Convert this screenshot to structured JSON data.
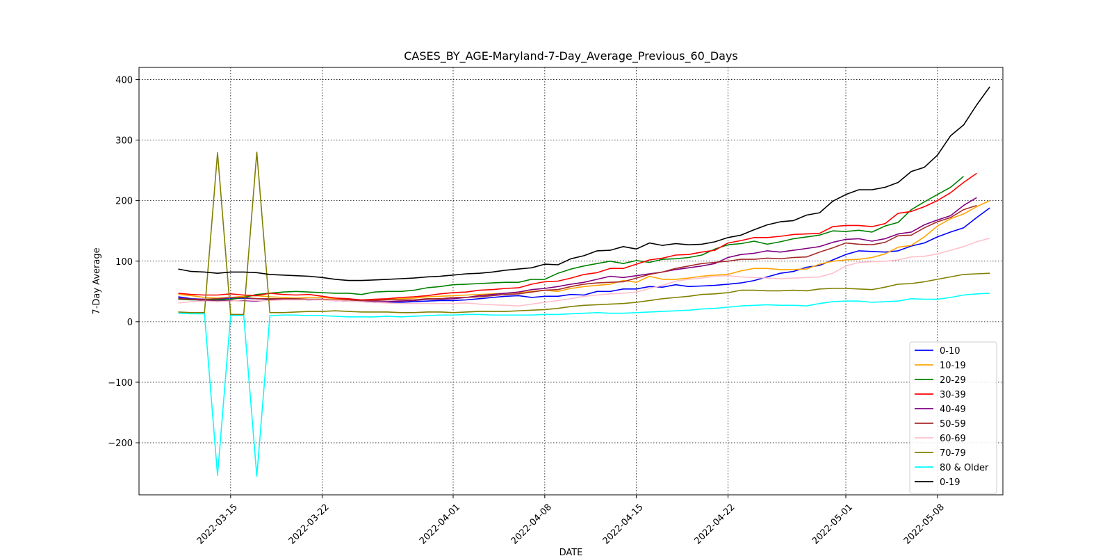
{
  "chart_data": {
    "type": "line",
    "title": "CASES_BY_AGE-Maryland-7-Day_Average_Previous_60_Days",
    "xlabel": "DATE",
    "ylabel": "7-Day Average",
    "x_start": "2022-03-11",
    "x_tick_labels": [
      "2022-03-15",
      "2022-03-22",
      "2022-04-01",
      "2022-04-08",
      "2022-04-15",
      "2022-04-22",
      "2022-05-01",
      "2022-05-08"
    ],
    "y_ticks": [
      -200,
      -100,
      0,
      100,
      200,
      300,
      400
    ],
    "y_tick_labels": [
      "−200",
      "−100",
      "0",
      "100",
      "200",
      "300",
      "400"
    ],
    "xlim": [
      "2022-03-08",
      "2022-05-13"
    ],
    "ylim": [
      -286,
      420
    ],
    "grid": true,
    "legend_position": "lower-right",
    "series": [
      {
        "name": "0-10",
        "color": "#0000ff",
        "values": [
          41,
          38,
          37,
          37,
          38,
          39,
          38,
          37,
          38,
          37,
          36,
          37,
          35,
          34,
          33,
          32,
          32,
          32,
          33,
          34,
          35,
          35,
          36,
          38,
          40,
          42,
          43,
          40,
          42,
          42,
          45,
          44,
          50,
          50,
          54,
          54,
          58,
          57,
          61,
          58,
          59,
          60,
          62,
          64,
          68,
          74,
          80,
          83,
          90,
          93,
          102,
          111,
          117,
          116,
          115,
          117,
          125,
          130,
          140,
          148,
          155,
          172,
          188
        ]
      },
      {
        "name": "10-19",
        "color": "#ffa500",
        "values": [
          45,
          43,
          40,
          39,
          40,
          42,
          43,
          41,
          40,
          39,
          40,
          40,
          38,
          37,
          36,
          36,
          37,
          38,
          39,
          41,
          42,
          43,
          44,
          45,
          46,
          47,
          48,
          50,
          52,
          50,
          55,
          58,
          60,
          62,
          68,
          65,
          75,
          70,
          70,
          72,
          75,
          77,
          78,
          84,
          88,
          88,
          86,
          86,
          87,
          95,
          100,
          102,
          103,
          106,
          112,
          123,
          126,
          140,
          158,
          170,
          178,
          190,
          200
        ]
      },
      {
        "name": "20-29",
        "color": "#008000",
        "values": [
          37,
          36,
          36,
          36,
          37,
          40,
          45,
          47,
          49,
          50,
          49,
          48,
          47,
          47,
          45,
          49,
          50,
          50,
          52,
          56,
          58,
          61,
          62,
          63,
          64,
          65,
          65,
          70,
          70,
          80,
          87,
          92,
          96,
          100,
          96,
          101,
          98,
          103,
          104,
          106,
          110,
          120,
          127,
          129,
          133,
          128,
          132,
          137,
          140,
          143,
          150,
          149,
          151,
          148,
          158,
          164,
          185,
          198,
          210,
          222,
          240
        ]
      },
      {
        "name": "30-39",
        "color": "#ff0000",
        "values": [
          47,
          45,
          44,
          44,
          46,
          44,
          43,
          47,
          45,
          44,
          45,
          42,
          39,
          38,
          36,
          37,
          38,
          40,
          41,
          43,
          46,
          48,
          49,
          52,
          53,
          55,
          56,
          62,
          66,
          67,
          72,
          78,
          81,
          88,
          88,
          95,
          102,
          105,
          110,
          111,
          115,
          118,
          130,
          134,
          139,
          139,
          141,
          144,
          145,
          146,
          157,
          159,
          159,
          157,
          162,
          179,
          182,
          190,
          200,
          213,
          230,
          245
        ]
      },
      {
        "name": "40-49",
        "color": "#800080",
        "values": [
          39,
          37,
          35,
          34,
          35,
          35,
          34,
          36,
          37,
          37,
          36,
          37,
          35,
          34,
          34,
          33,
          33,
          34,
          35,
          37,
          37,
          38,
          40,
          43,
          45,
          47,
          49,
          53,
          55,
          58,
          62,
          65,
          70,
          75,
          73,
          76,
          79,
          82,
          86,
          89,
          92,
          96,
          106,
          111,
          113,
          117,
          115,
          118,
          121,
          124,
          131,
          136,
          137,
          133,
          137,
          145,
          148,
          160,
          168,
          175,
          192,
          205
        ]
      },
      {
        "name": "50-59",
        "color": "#a52a2a",
        "values": [
          38,
          37,
          37,
          38,
          40,
          40,
          38,
          38,
          38,
          38,
          37,
          37,
          36,
          36,
          35,
          35,
          36,
          36,
          36,
          38,
          38,
          40,
          40,
          41,
          43,
          45,
          46,
          49,
          52,
          53,
          58,
          62,
          64,
          65,
          66,
          72,
          78,
          82,
          88,
          92,
          96,
          98,
          100,
          103,
          103,
          105,
          104,
          106,
          107,
          115,
          122,
          130,
          128,
          127,
          131,
          142,
          143,
          155,
          165,
          172,
          185,
          192
        ]
      },
      {
        "name": "60-69",
        "color": "#ffc0cb",
        "values": [
          31,
          33,
          34,
          33,
          34,
          36,
          35,
          35,
          36,
          36,
          36,
          36,
          35,
          34,
          33,
          32,
          31,
          30,
          30,
          30,
          30,
          30,
          31,
          29,
          28,
          27,
          26,
          29,
          32,
          35,
          38,
          42,
          44,
          46,
          47,
          49,
          55,
          60,
          67,
          70,
          72,
          75,
          76,
          74,
          73,
          72,
          71,
          72,
          73,
          74,
          80,
          92,
          98,
          99,
          100,
          102,
          107,
          108,
          112,
          118,
          124,
          132,
          138
        ]
      },
      {
        "name": "70-79",
        "color": "#808000",
        "values": [
          16,
          15,
          15,
          279,
          12,
          12,
          280,
          15,
          15,
          16,
          17,
          17,
          18,
          17,
          16,
          16,
          16,
          15,
          15,
          16,
          16,
          15,
          16,
          17,
          17,
          17,
          18,
          19,
          20,
          22,
          25,
          27,
          28,
          29,
          30,
          32,
          35,
          38,
          40,
          42,
          45,
          46,
          48,
          52,
          52,
          51,
          51,
          52,
          51,
          54,
          55,
          55,
          54,
          53,
          57,
          62,
          63,
          66,
          70,
          74,
          78,
          79,
          80
        ]
      },
      {
        "name": "80 & Older",
        "color": "#00ffff",
        "values": [
          14,
          13,
          13,
          -254,
          10,
          10,
          -255,
          10,
          11,
          11,
          10,
          10,
          9,
          8,
          8,
          8,
          9,
          8,
          9,
          10,
          11,
          11,
          12,
          12,
          11,
          11,
          11,
          11,
          12,
          12,
          13,
          14,
          15,
          14,
          14,
          15,
          16,
          17,
          18,
          19,
          21,
          22,
          24,
          26,
          27,
          28,
          27,
          27,
          26,
          30,
          33,
          34,
          34,
          32,
          33,
          34,
          38,
          37,
          37,
          40,
          44,
          46,
          47
        ]
      },
      {
        "name": "0-19",
        "color": "#000000",
        "values": [
          87,
          83,
          82,
          80,
          82,
          82,
          81,
          78,
          77,
          76,
          75,
          73,
          70,
          68,
          68,
          69,
          70,
          71,
          72,
          74,
          75,
          77,
          79,
          80,
          82,
          85,
          87,
          89,
          95,
          94,
          104,
          109,
          117,
          118,
          124,
          120,
          130,
          126,
          129,
          127,
          128,
          132,
          139,
          143,
          152,
          160,
          165,
          167,
          176,
          180,
          199,
          210,
          218,
          218,
          222,
          230,
          248,
          255,
          275,
          307,
          325,
          358,
          388
        ]
      }
    ]
  }
}
